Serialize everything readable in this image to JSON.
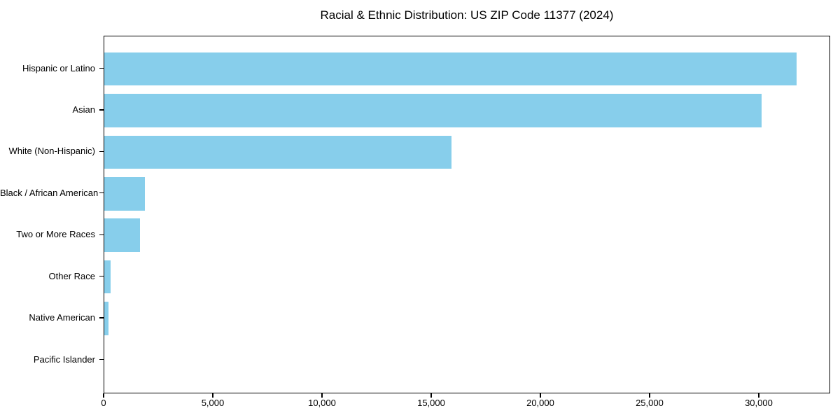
{
  "chart_data": {
    "type": "bar",
    "orientation": "horizontal",
    "title": "Racial & Ethnic Distribution: US ZIP Code 11377 (2024)",
    "categories": [
      "Hispanic or Latino",
      "Asian",
      "White (Non-Hispanic)",
      "Black / African American",
      "Two or More Races",
      "Other Race",
      "Native American",
      "Pacific Islander"
    ],
    "values": [
      31700,
      30100,
      15900,
      1860,
      1640,
      290,
      190,
      0
    ],
    "xlabel": "",
    "ylabel": "",
    "xlim": [
      0,
      33270
    ],
    "x_ticks": [
      0,
      5000,
      10000,
      15000,
      20000,
      25000,
      30000
    ],
    "x_tick_labels": [
      "0",
      "5,000",
      "10,000",
      "15,000",
      "20,000",
      "25,000",
      "30,000"
    ],
    "bar_color": "#87CEEB",
    "axis_color": "#000000",
    "background_color": "#FFFFFF",
    "grid": false,
    "legend": false
  }
}
